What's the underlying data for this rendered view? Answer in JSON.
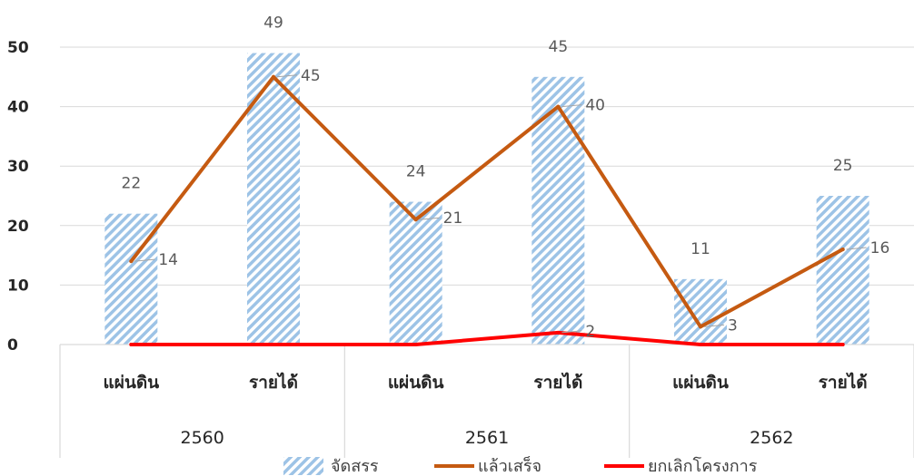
{
  "chart_data": {
    "type": "bar",
    "categories": [
      "แผ่นดิน",
      "รายได้",
      "แผ่นดิน",
      "รายได้",
      "แผ่นดิน",
      "รายได้"
    ],
    "groups": [
      {
        "label": "2560",
        "span": 2
      },
      {
        "label": "2561",
        "span": 2
      },
      {
        "label": "2562",
        "span": 2
      }
    ],
    "series": [
      {
        "name": "จัดสรร",
        "kind": "bar",
        "values": [
          22,
          49,
          24,
          45,
          11,
          25
        ],
        "color": "#9DC3E6"
      },
      {
        "name": "แล้วเสร็จ",
        "kind": "line",
        "values": [
          14,
          45,
          21,
          40,
          3,
          16
        ],
        "color": "#C55A11"
      },
      {
        "name": "ยกเลิกโครงการ",
        "kind": "line",
        "values": [
          0,
          0,
          0,
          2,
          0,
          0
        ],
        "color": "#FF0000"
      }
    ],
    "yticks": [
      0,
      10,
      20,
      30,
      40,
      50
    ],
    "ylim": [
      0,
      50
    ],
    "grid": true,
    "legend": "bottom"
  }
}
